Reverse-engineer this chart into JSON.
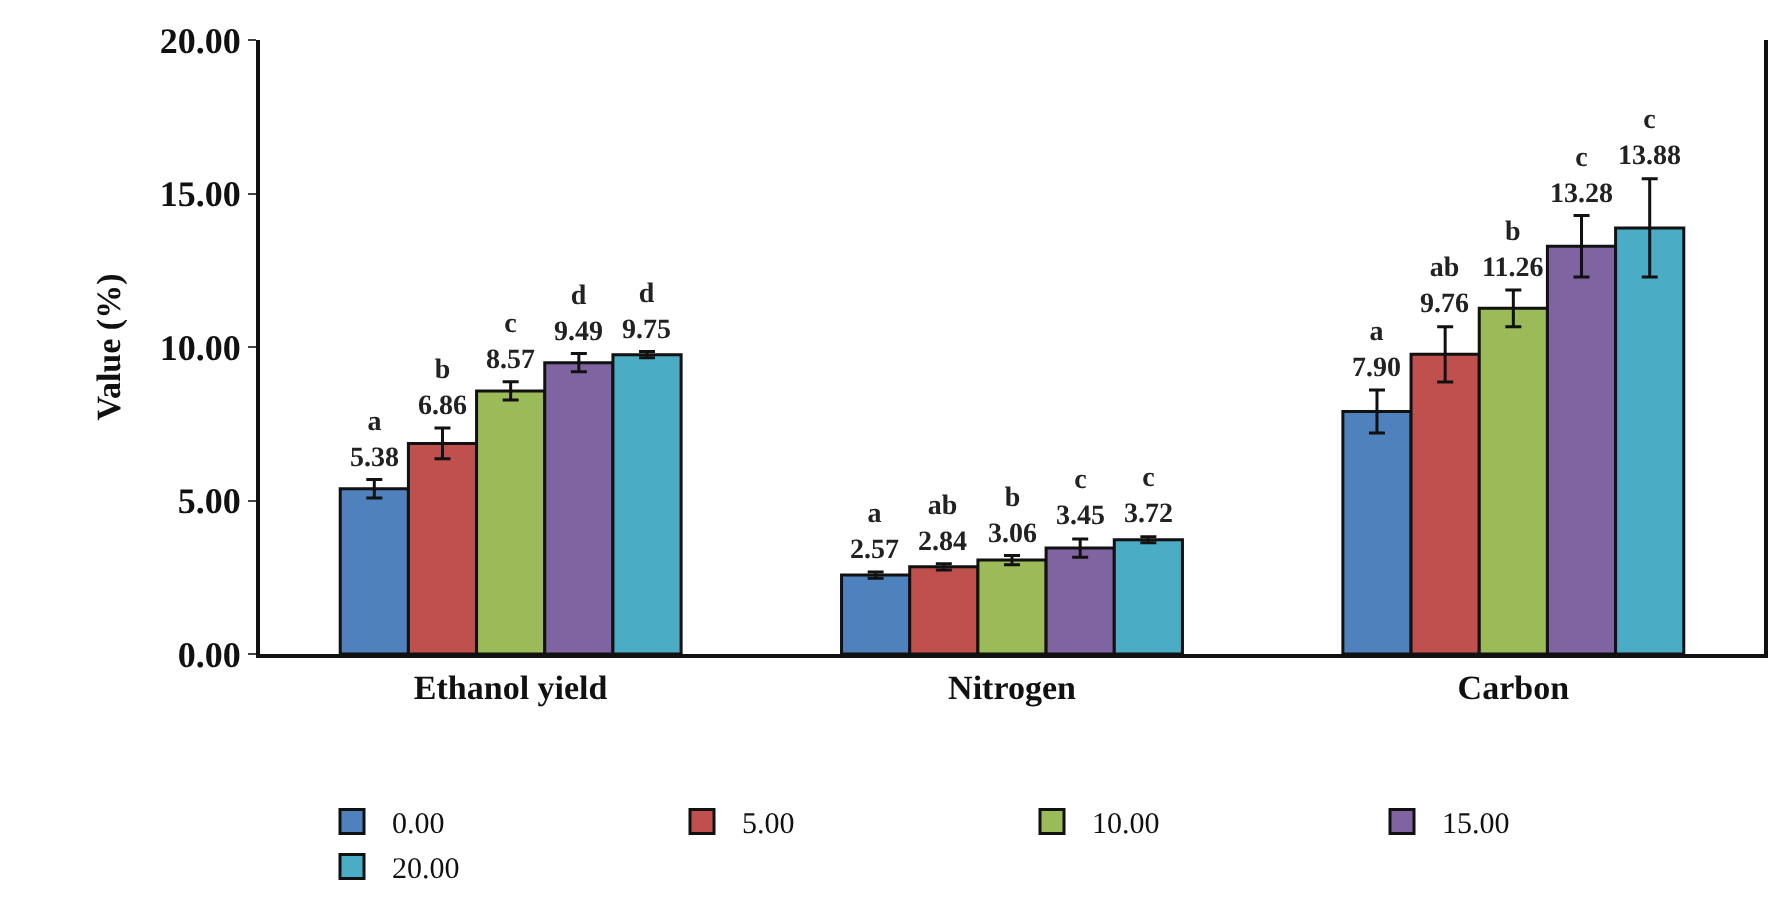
{
  "chart_data": {
    "type": "bar",
    "ylabel": "Value (%)",
    "categories": [
      "Ethanol yield",
      "Nitrogen",
      "Carbon"
    ],
    "series": [
      {
        "name": "0.00",
        "color": "#4f81bd",
        "values": [
          5.38,
          2.57,
          7.9
        ],
        "errors": [
          0.3,
          0.1,
          0.7
        ],
        "value_labels": [
          "a\n5.38",
          "a\n2.57",
          "a\n7.90"
        ]
      },
      {
        "name": "5.00",
        "color": "#c0504d",
        "values": [
          6.86,
          2.84,
          9.76
        ],
        "errors": [
          0.5,
          0.1,
          0.9
        ],
        "value_labels": [
          "b\n6.86",
          "ab\n2.84",
          "ab\n9.76"
        ]
      },
      {
        "name": "10.00",
        "color": "#9bbb59",
        "values": [
          8.57,
          3.06,
          11.26
        ],
        "errors": [
          0.3,
          0.15,
          0.6
        ],
        "value_labels": [
          "c\n8.57",
          "b\n3.06",
          "b\n11.26"
        ]
      },
      {
        "name": "15.00",
        "color": "#8064a2",
        "values": [
          9.49,
          3.45,
          13.28
        ],
        "errors": [
          0.3,
          0.3,
          1.0
        ],
        "value_labels": [
          "d\n9.49",
          "c\n3.45",
          "c\n13.28"
        ]
      },
      {
        "name": "20.00",
        "color": "#4bacc6",
        "values": [
          9.75,
          3.72,
          13.88
        ],
        "errors": [
          0.1,
          0.1,
          1.6
        ],
        "value_labels": [
          "d\n9.75",
          "c\n3.72",
          "c\n13.88"
        ]
      }
    ],
    "ylim": [
      0,
      20
    ],
    "yticks": [
      {
        "value": 0,
        "label": "0.00"
      },
      {
        "value": 5,
        "label": "5.00"
      },
      {
        "value": 10,
        "label": "10.00"
      },
      {
        "value": 15,
        "label": "15.00"
      },
      {
        "value": 20,
        "label": "20.00"
      }
    ],
    "legend": "bottom"
  }
}
